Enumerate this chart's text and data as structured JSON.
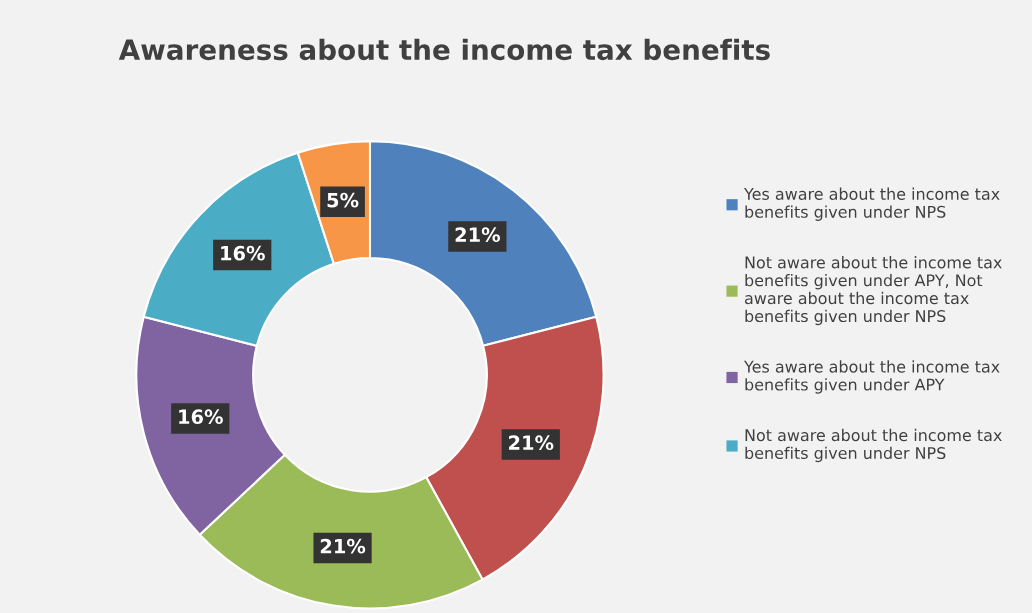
{
  "chart_data": {
    "type": "donut",
    "title": "Awareness about the income tax benefits",
    "categories": [
      "Yes aware about the income tax benefits given under NPS",
      null,
      "Not aware about the income tax benefits given under APY, Not aware about the income tax benefits given under NPS",
      "Yes aware about the income tax benefits given under APY",
      "Not aware about the income tax benefits given under NPS",
      null
    ],
    "values": [
      21,
      21,
      21,
      16,
      16,
      5
    ],
    "colors": [
      "#4f81bd",
      "#c0504d",
      "#9bbb59",
      "#8064a2",
      "#4bacc6",
      "#f79646"
    ],
    "value_labels": [
      "21%",
      "21%",
      "21%",
      "16%",
      "16%",
      "5%"
    ],
    "legend": "right"
  }
}
